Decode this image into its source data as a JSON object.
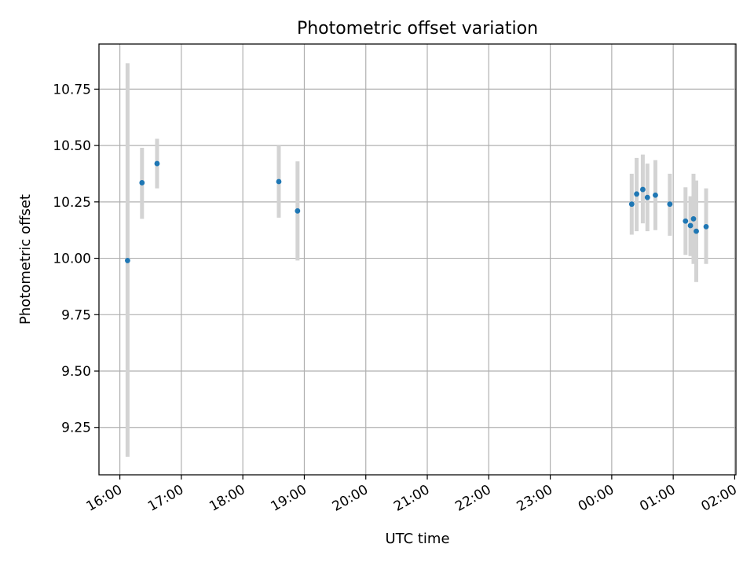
{
  "chart_data": {
    "type": "scatter",
    "title": "Photometric offset variation",
    "xlabel": "UTC time",
    "ylabel": "Photometric offset",
    "x_unit": "hours since 16:00 UTC",
    "xlim": [
      -0.34,
      10.02
    ],
    "ylim": [
      9.04,
      10.95
    ],
    "x_ticks": [
      {
        "value": 0,
        "label": "16:00"
      },
      {
        "value": 1,
        "label": "17:00"
      },
      {
        "value": 2,
        "label": "18:00"
      },
      {
        "value": 3,
        "label": "19:00"
      },
      {
        "value": 4,
        "label": "20:00"
      },
      {
        "value": 5,
        "label": "21:00"
      },
      {
        "value": 6,
        "label": "22:00"
      },
      {
        "value": 7,
        "label": "23:00"
      },
      {
        "value": 8,
        "label": "00:00"
      },
      {
        "value": 9,
        "label": "01:00"
      },
      {
        "value": 10,
        "label": "02:00"
      }
    ],
    "y_ticks": [
      {
        "value": 9.25,
        "label": "9.25"
      },
      {
        "value": 9.5,
        "label": "9.50"
      },
      {
        "value": 9.75,
        "label": "9.75"
      },
      {
        "value": 10.0,
        "label": "10.00"
      },
      {
        "value": 10.25,
        "label": "10.25"
      },
      {
        "value": 10.5,
        "label": "10.50"
      },
      {
        "value": 10.75,
        "label": "10.75"
      }
    ],
    "grid": true,
    "colors": {
      "point": "#1f77b4",
      "errorbar": "#d3d3d3",
      "grid": "#b0b0b0"
    },
    "points": [
      {
        "x": 0.125,
        "y": 9.99,
        "ylow": 9.12,
        "yhigh": 10.865
      },
      {
        "x": 0.36,
        "y": 10.335,
        "ylow": 10.175,
        "yhigh": 10.49
      },
      {
        "x": 0.605,
        "y": 10.42,
        "ylow": 10.31,
        "yhigh": 10.53
      },
      {
        "x": 2.585,
        "y": 10.34,
        "ylow": 10.18,
        "yhigh": 10.5
      },
      {
        "x": 2.89,
        "y": 10.21,
        "ylow": 9.99,
        "yhigh": 10.43
      },
      {
        "x": 8.325,
        "y": 10.24,
        "ylow": 10.105,
        "yhigh": 10.375
      },
      {
        "x": 8.405,
        "y": 10.285,
        "ylow": 10.12,
        "yhigh": 10.445
      },
      {
        "x": 8.505,
        "y": 10.305,
        "ylow": 10.155,
        "yhigh": 10.46
      },
      {
        "x": 8.58,
        "y": 10.27,
        "ylow": 10.12,
        "yhigh": 10.42
      },
      {
        "x": 8.71,
        "y": 10.28,
        "ylow": 10.125,
        "yhigh": 10.435
      },
      {
        "x": 8.945,
        "y": 10.24,
        "ylow": 10.1,
        "yhigh": 10.375
      },
      {
        "x": 9.2,
        "y": 10.165,
        "ylow": 10.015,
        "yhigh": 10.315
      },
      {
        "x": 9.28,
        "y": 10.145,
        "ylow": 10.01,
        "yhigh": 10.275
      },
      {
        "x": 9.33,
        "y": 10.175,
        "ylow": 9.975,
        "yhigh": 10.375
      },
      {
        "x": 9.375,
        "y": 10.12,
        "ylow": 9.895,
        "yhigh": 10.345
      },
      {
        "x": 9.535,
        "y": 10.14,
        "ylow": 9.975,
        "yhigh": 10.31
      }
    ]
  }
}
